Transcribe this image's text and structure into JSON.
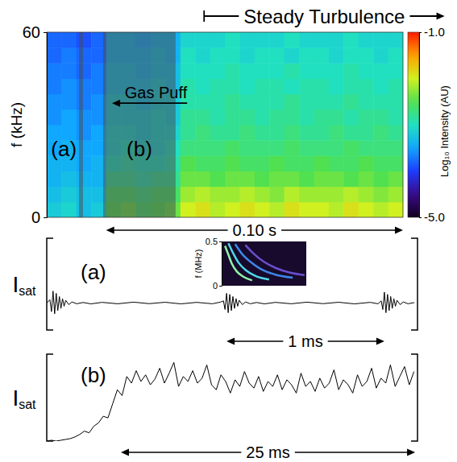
{
  "chart_data": [
    {
      "type": "heatmap",
      "title": "Steady Turbulence",
      "title_x": [
        0.053,
        0.134
      ],
      "ylabel": "f (kHz)",
      "x": [
        0,
        0.005,
        0.01,
        0.015,
        0.02,
        0.025,
        0.03,
        0.035,
        0.04,
        0.045,
        0.05,
        0.055,
        0.06,
        0.065,
        0.07,
        0.075,
        0.08,
        0.085,
        0.09,
        0.095,
        0.1,
        0.105,
        0.11,
        0.115
      ],
      "y": [
        0,
        5,
        10,
        15,
        20,
        25,
        30,
        35,
        40,
        45,
        50,
        55
      ],
      "values": [
        [
          -3.2,
          -3.1,
          -3.3,
          -3.2,
          -2.5,
          -2.4,
          -2.6,
          -2.5,
          -2.4,
          -2.0,
          -1.9,
          -2.1,
          -2.0,
          -1.9,
          -2.0,
          -2.1,
          -1.9,
          -2.0,
          -2.0,
          -2.1,
          -1.9,
          -2.0,
          -2.1,
          -2.0
        ],
        [
          -3.3,
          -3.2,
          -3.3,
          -3.3,
          -2.6,
          -2.6,
          -2.7,
          -2.6,
          -2.6,
          -2.2,
          -2.1,
          -2.2,
          -2.2,
          -2.1,
          -2.2,
          -2.3,
          -2.1,
          -2.2,
          -2.2,
          -2.2,
          -2.1,
          -2.2,
          -2.3,
          -2.2
        ],
        [
          -3.4,
          -3.3,
          -3.4,
          -3.4,
          -2.8,
          -2.8,
          -2.9,
          -2.8,
          -2.8,
          -2.4,
          -2.4,
          -2.5,
          -2.4,
          -2.4,
          -2.5,
          -2.4,
          -2.4,
          -2.5,
          -2.4,
          -2.4,
          -2.5,
          -2.4,
          -2.5,
          -2.4
        ],
        [
          -3.4,
          -3.4,
          -3.5,
          -3.4,
          -3.0,
          -2.9,
          -3.0,
          -3.0,
          -2.9,
          -2.5,
          -2.6,
          -2.6,
          -2.5,
          -2.6,
          -2.6,
          -2.5,
          -2.6,
          -2.6,
          -2.5,
          -2.6,
          -2.6,
          -2.5,
          -2.6,
          -2.6
        ],
        [
          -3.5,
          -3.4,
          -3.5,
          -3.5,
          -3.1,
          -3.0,
          -3.1,
          -3.1,
          -3.0,
          -2.7,
          -2.7,
          -2.7,
          -2.6,
          -2.7,
          -2.7,
          -2.7,
          -2.6,
          -2.7,
          -2.7,
          -2.7,
          -2.6,
          -2.7,
          -2.7,
          -2.7
        ],
        [
          -3.5,
          -3.5,
          -3.6,
          -3.5,
          -3.1,
          -3.1,
          -3.2,
          -3.1,
          -3.1,
          -2.8,
          -2.7,
          -2.8,
          -2.8,
          -2.7,
          -2.8,
          -2.8,
          -2.7,
          -2.8,
          -2.8,
          -2.7,
          -2.8,
          -2.8,
          -2.7,
          -2.8
        ],
        [
          -3.6,
          -3.5,
          -3.6,
          -3.6,
          -3.2,
          -3.2,
          -3.2,
          -3.1,
          -3.2,
          -2.8,
          -2.8,
          -2.9,
          -2.8,
          -2.8,
          -2.9,
          -2.8,
          -2.8,
          -2.9,
          -2.8,
          -2.8,
          -2.9,
          -2.8,
          -2.8,
          -2.9
        ],
        [
          -3.6,
          -3.6,
          -3.7,
          -3.6,
          -3.2,
          -3.2,
          -3.3,
          -3.2,
          -3.2,
          -2.9,
          -2.9,
          -2.9,
          -2.8,
          -2.9,
          -2.9,
          -2.9,
          -2.8,
          -2.9,
          -2.9,
          -2.9,
          -2.8,
          -2.9,
          -2.9,
          -2.9
        ],
        [
          -3.7,
          -3.6,
          -3.7,
          -3.7,
          -3.3,
          -3.3,
          -3.3,
          -3.2,
          -3.3,
          -2.9,
          -3.0,
          -2.9,
          -2.9,
          -3.0,
          -2.9,
          -2.9,
          -3.0,
          -2.9,
          -2.9,
          -3.0,
          -2.9,
          -2.9,
          -3.0,
          -2.9
        ],
        [
          -3.7,
          -3.7,
          -3.8,
          -3.7,
          -3.3,
          -3.3,
          -3.4,
          -3.3,
          -3.3,
          -3.0,
          -3.0,
          -3.0,
          -2.9,
          -3.0,
          -3.0,
          -3.0,
          -2.9,
          -3.0,
          -3.0,
          -3.0,
          -2.9,
          -3.0,
          -3.0,
          -3.0
        ],
        [
          -3.8,
          -3.7,
          -3.8,
          -3.8,
          -3.4,
          -3.4,
          -3.4,
          -3.3,
          -3.4,
          -3.0,
          -3.1,
          -3.0,
          -3.0,
          -3.1,
          -3.0,
          -3.0,
          -3.1,
          -3.0,
          -3.0,
          -3.1,
          -3.0,
          -3.0,
          -3.1,
          -3.0
        ],
        [
          -3.8,
          -3.8,
          -3.9,
          -3.8,
          -3.4,
          -3.4,
          -3.5,
          -3.4,
          -3.4,
          -3.1,
          -3.1,
          -3.1,
          -3.0,
          -3.1,
          -3.1,
          -3.1,
          -3.0,
          -3.1,
          -3.1,
          -3.1,
          -3.0,
          -3.1,
          -3.1,
          -3.1
        ]
      ],
      "xlim": [
        0,
        0.12
      ],
      "ylim": [
        0,
        60
      ],
      "yticks": [
        0,
        60
      ],
      "tick_labels": "y",
      "colorbar": {
        "title": "Log₁₀ Intensity (AU)",
        "range": [
          -5,
          -1
        ],
        "ticks": [
          {
            "value": -1,
            "label": "-1.0"
          },
          {
            "value": -5,
            "label": "-5.0"
          }
        ]
      },
      "regions": [
        {
          "text": "(a)",
          "x": [
            0.0109,
            0.0122
          ]
        },
        {
          "text": "(b)",
          "x": [
            0.019,
            0.0434
          ]
        }
      ],
      "annotations": [
        {
          "text": "Gas Puff",
          "x": [
            0.022,
            0.0473
          ],
          "y": 37
        },
        {
          "text": "0.10 s",
          "x": [
            0.02,
            0.12
          ]
        }
      ]
    },
    {
      "type": "line",
      "label": "(a)",
      "ylabel": "Isat",
      "x": [
        0,
        0.02,
        0.03,
        0.04,
        0.05,
        0.06,
        0.07,
        0.08,
        0.09,
        0.1,
        0.11,
        0.12,
        0.14,
        0.16,
        0.19,
        0.23,
        0.28,
        0.35,
        0.45,
        0.55,
        0.65,
        0.75,
        0.85,
        0.95,
        1.05,
        1.1,
        1.12,
        1.13,
        1.14,
        1.15,
        1.16,
        1.17,
        1.18,
        1.19,
        1.2,
        1.21,
        1.22,
        1.24,
        1.26,
        1.29,
        1.33,
        1.38,
        1.45,
        1.55,
        1.65,
        1.75,
        1.85,
        1.95,
        2.05,
        2.1,
        2.12,
        2.13,
        2.14,
        2.15,
        2.16,
        2.17,
        2.18,
        2.19,
        2.2,
        2.21,
        2.22,
        2.24,
        2.26,
        2.29,
        2.33
      ],
      "values": [
        0,
        0.3,
        -0.8,
        1.1,
        -1.0,
        0.9,
        -0.7,
        0.6,
        -0.5,
        0.4,
        -0.3,
        0.25,
        -0.15,
        0.1,
        -0.07,
        0.05,
        -0.08,
        0.06,
        -0.07,
        0.08,
        -0.06,
        0.07,
        -0.08,
        0.06,
        -0.07,
        0.08,
        0.2,
        -0.6,
        0.9,
        -0.9,
        0.8,
        -0.7,
        0.6,
        -0.5,
        0.4,
        -0.3,
        0.25,
        -0.15,
        0.1,
        -0.07,
        0.05,
        -0.08,
        0.06,
        -0.07,
        0.08,
        -0.06,
        0.07,
        -0.08,
        0.06,
        -0.07,
        0.2,
        -0.6,
        1.0,
        -0.9,
        0.8,
        -0.7,
        0.6,
        -0.5,
        0.4,
        -0.3,
        0.25,
        -0.15,
        0.1,
        -0.07,
        0.04
      ],
      "color": "#000000",
      "xlim": [
        0,
        2.35
      ],
      "ylim": [
        -2.5,
        6
      ],
      "tick_labels": false,
      "annotations": [
        {
          "text": "1 ms",
          "x": [
            1.14,
            2.14
          ]
        }
      ],
      "inset": {
        "type": "line",
        "ylabel": "f (MHz)",
        "xlim": [
          0,
          0.5
        ],
        "ylim": [
          0,
          0.5
        ],
        "yticks": [
          0,
          0.5
        ],
        "series": [
          {
            "color": "#8ff5a8",
            "x": [
              0.02,
              0.04,
              0.06,
              0.09,
              0.13,
              0.18
            ],
            "values": [
              0.45,
              0.35,
              0.25,
              0.16,
              0.1,
              0.06
            ]
          },
          {
            "color": "#4fd8e8",
            "x": [
              0.04,
              0.07,
              0.1,
              0.14,
              0.2,
              0.28
            ],
            "values": [
              0.48,
              0.36,
              0.26,
              0.18,
              0.11,
              0.07
            ]
          },
          {
            "color": "#3d86e8",
            "x": [
              0.08,
              0.12,
              0.17,
              0.23,
              0.31,
              0.42
            ],
            "values": [
              0.47,
              0.36,
              0.27,
              0.19,
              0.13,
              0.09
            ]
          },
          {
            "color": "#6a4fd0",
            "x": [
              0.14,
              0.19,
              0.25,
              0.32,
              0.4,
              0.49
            ],
            "values": [
              0.46,
              0.36,
              0.27,
              0.2,
              0.15,
              0.12
            ]
          }
        ]
      }
    },
    {
      "type": "line",
      "label": "(b)",
      "ylabel": "Isat",
      "x": [
        0,
        0.4,
        0.8,
        1.2,
        1.6,
        2,
        2.4,
        2.8,
        3.2,
        3.6,
        4,
        4.4,
        4.8,
        5.2,
        5.6,
        6,
        6.4,
        6.8,
        7.2,
        7.6,
        8,
        8.4,
        8.8,
        9.2,
        9.6,
        10,
        10.4,
        10.8,
        11.2,
        11.6,
        12,
        12.4,
        12.8,
        13.2,
        13.6,
        14,
        14.4,
        14.8,
        15.2,
        15.6,
        16,
        16.4,
        16.8,
        17.2,
        17.6,
        18,
        18.4,
        18.8,
        19.2,
        19.6,
        20,
        20.4,
        20.8,
        21.2,
        21.6,
        22,
        22.4,
        22.8,
        23.2,
        23.6,
        24,
        24.4,
        24.8,
        25.2,
        25.6,
        26,
        26.4,
        26.8,
        27.2,
        27.6,
        28,
        28.4,
        28.8,
        29.2,
        29.6,
        30,
        30.4,
        30.8,
        31.2
      ],
      "values": [
        0,
        0.01,
        0,
        0.01,
        0.02,
        0.03,
        0.05,
        0.08,
        0.12,
        0.1,
        0.18,
        0.22,
        0.3,
        0.28,
        0.45,
        0.62,
        0.55,
        0.78,
        0.7,
        0.85,
        0.72,
        0.8,
        0.68,
        0.75,
        0.88,
        0.7,
        0.82,
        0.95,
        0.66,
        0.78,
        0.72,
        0.85,
        0.7,
        0.76,
        0.92,
        0.68,
        0.62,
        0.8,
        0.72,
        0.58,
        0.74,
        0.66,
        0.84,
        0.7,
        0.64,
        0.78,
        0.6,
        0.72,
        0.66,
        0.8,
        0.62,
        0.74,
        0.68,
        0.58,
        0.82,
        0.66,
        0.72,
        0.6,
        0.76,
        0.64,
        0.7,
        0.86,
        0.62,
        0.74,
        0.68,
        0.58,
        0.8,
        0.66,
        0.72,
        0.88,
        0.64,
        0.76,
        0.7,
        0.92,
        0.66,
        0.78,
        0.9,
        0.68,
        0.84
      ],
      "color": "#000000",
      "xlim": [
        0,
        31.5
      ],
      "ylim": [
        0,
        1.05
      ],
      "tick_labels": false,
      "annotations": [
        {
          "text": "25 ms",
          "x": [
            6.3,
            31.3
          ]
        }
      ]
    }
  ]
}
